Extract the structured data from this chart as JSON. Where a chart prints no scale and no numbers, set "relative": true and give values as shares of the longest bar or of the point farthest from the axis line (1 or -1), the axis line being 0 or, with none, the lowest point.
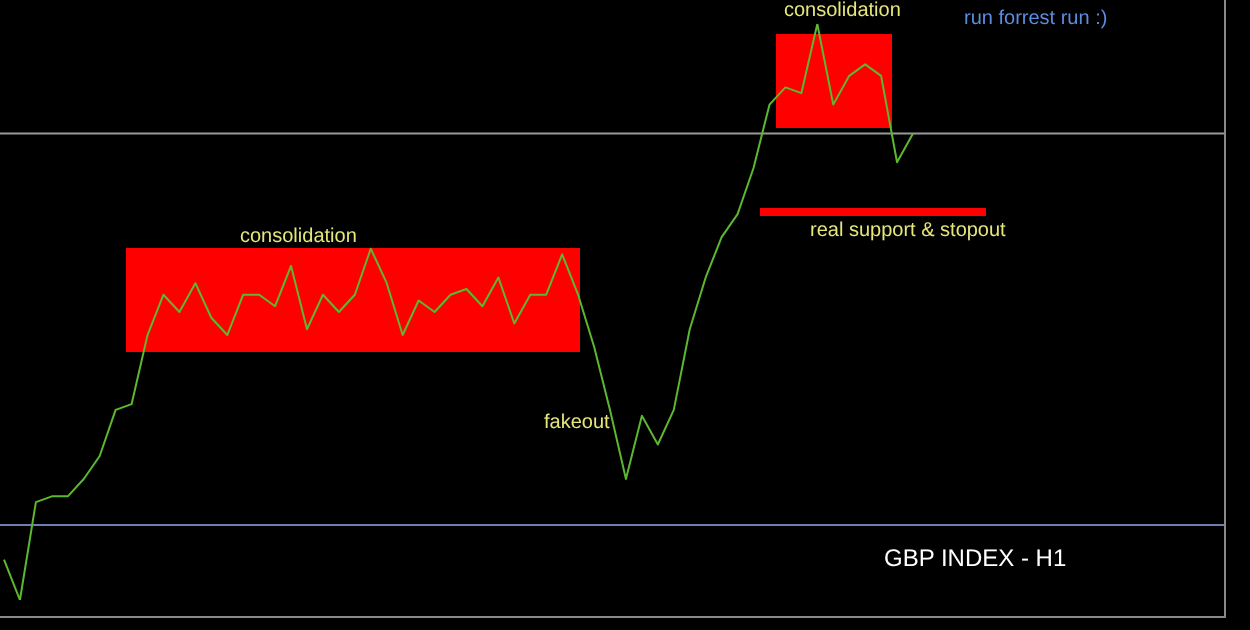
{
  "chart_data": {
    "type": "line",
    "relative": true,
    "title": "GBP INDEX - H1",
    "categories": [
      null,
      null,
      null,
      null,
      null,
      null,
      null,
      null,
      null,
      null,
      null,
      null,
      null,
      null,
      null,
      null,
      null,
      null,
      null,
      null,
      null,
      null,
      null,
      null,
      null,
      null,
      null,
      null,
      null,
      null,
      null,
      null,
      null,
      null,
      null,
      null,
      null,
      null,
      null,
      null,
      null,
      null,
      null,
      null,
      null,
      null,
      null,
      null,
      null,
      null,
      null,
      null,
      null,
      null,
      null,
      null,
      null,
      null,
      null,
      null,
      null,
      null,
      null,
      null,
      null,
      null,
      null,
      null,
      null,
      null,
      null,
      null,
      null,
      null,
      null,
      null,
      null
    ],
    "series": [
      {
        "color": "#5cb82e",
        "values": [
          0.07,
          0,
          0.17,
          0.18,
          0.18,
          0.21,
          0.25,
          0.33,
          0.34,
          0.46,
          0.53,
          0.5,
          0.55,
          0.49,
          0.46,
          0.53,
          0.53,
          0.51,
          0.58,
          0.47,
          0.53,
          0.5,
          0.53,
          0.61,
          0.55,
          0.46,
          0.52,
          0.5,
          0.53,
          0.54,
          0.51,
          0.56,
          0.48,
          0.53,
          0.53,
          0.6,
          0.53,
          0.44,
          0.33,
          0.21,
          0.32,
          0.27,
          0.33,
          0.47,
          0.56,
          0.63,
          0.67,
          0.75,
          0.86,
          0.89,
          0.88,
          1,
          0.86,
          0.91,
          0.93,
          0.91,
          0.76,
          0.81,
          null,
          null,
          null,
          null,
          null,
          null,
          null,
          null,
          null,
          null,
          null,
          null,
          null,
          null,
          null,
          null,
          null,
          null,
          null
        ]
      }
    ],
    "annotations": [
      "consolidation",
      "consolidation",
      "fakeout",
      "real support & stopout",
      "run forrest run :)"
    ],
    "ref_lines": [
      {
        "axis": "y",
        "value": 0.81,
        "color": "#999999"
      },
      {
        "axis": "y",
        "value": 0.13,
        "color": "#6a7fb0"
      }
    ],
    "grid": false,
    "legend": false,
    "marker": "none",
    "line_style": "solid"
  }
}
